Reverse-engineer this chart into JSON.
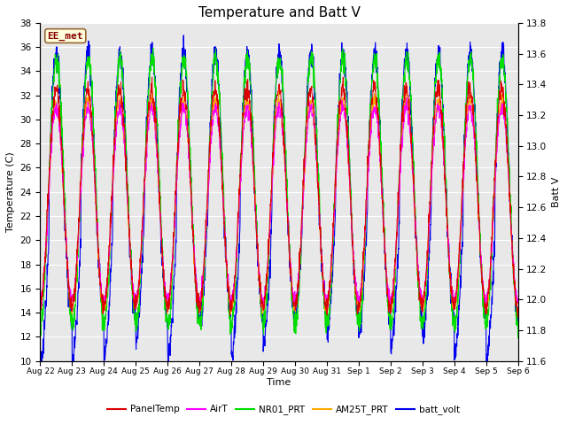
{
  "title": "Temperature and Batt V",
  "ylabel_left": "Temperature (C)",
  "ylabel_right": "Batt V",
  "xlabel": "Time",
  "ylim_left": [
    10,
    38
  ],
  "ylim_right": [
    11.6,
    13.8
  ],
  "yticks_left": [
    10,
    12,
    14,
    16,
    18,
    20,
    22,
    24,
    26,
    28,
    30,
    32,
    34,
    36,
    38
  ],
  "yticks_right": [
    11.6,
    11.8,
    12.0,
    12.2,
    12.4,
    12.6,
    12.8,
    13.0,
    13.2,
    13.4,
    13.6,
    13.8
  ],
  "xticklabels": [
    "Aug 22",
    "Aug 23",
    "Aug 24",
    "Aug 25",
    "Aug 26",
    "Aug 27",
    "Aug 28",
    "Aug 29",
    "Aug 30",
    "Aug 31",
    "Sep 1",
    "Sep 2",
    "Sep 3",
    "Sep 4",
    "Sep 5",
    "Sep 6"
  ],
  "annotation": "EE_met",
  "legend": [
    {
      "label": "PanelTemp",
      "color": "#dd0000"
    },
    {
      "label": "AirT",
      "color": "#ff00ff"
    },
    {
      "label": "NR01_PRT",
      "color": "#00dd00"
    },
    {
      "label": "AM25T_PRT",
      "color": "#ffaa00"
    },
    {
      "label": "batt_volt",
      "color": "#0000ee"
    }
  ],
  "background_color": "#e8e8e8",
  "title_fontsize": 11,
  "figsize": [
    6.4,
    4.8
  ],
  "dpi": 100
}
